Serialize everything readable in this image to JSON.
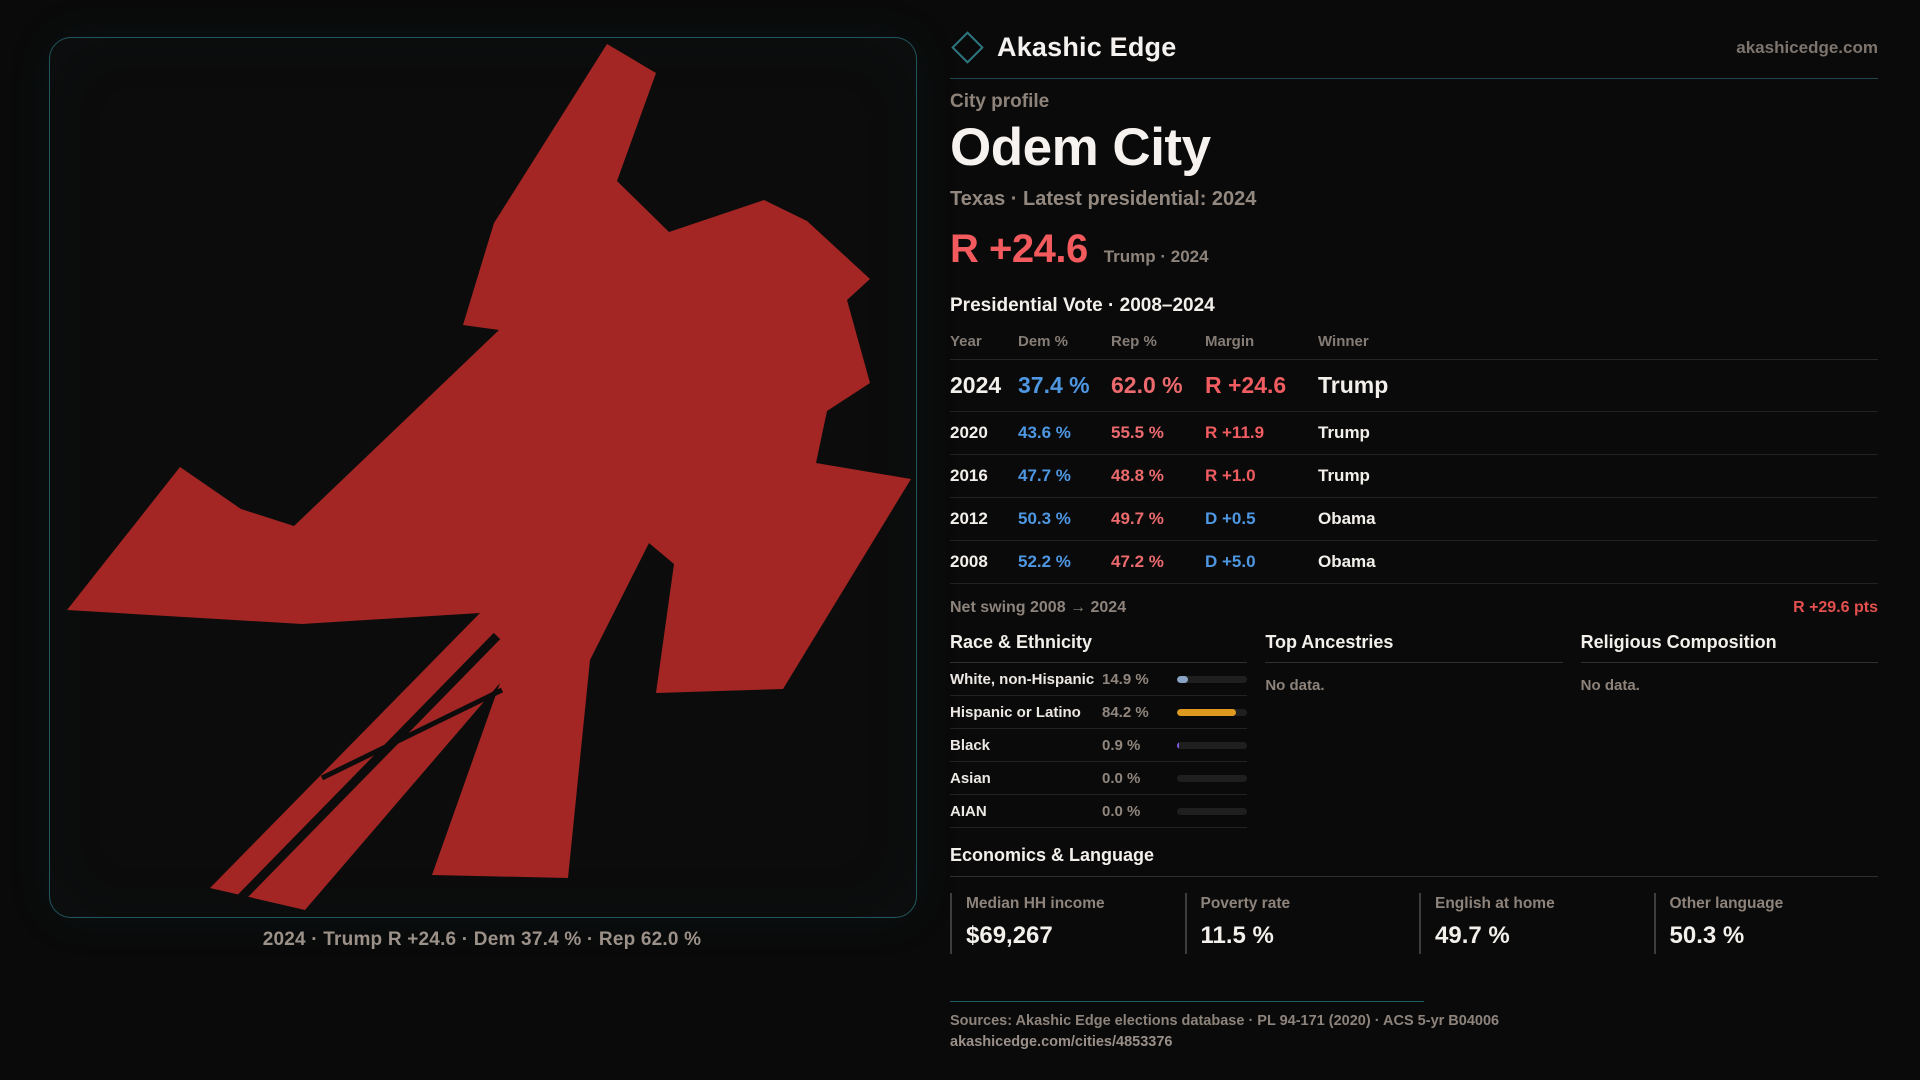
{
  "brand": {
    "name": "Akashic Edge",
    "domain": "akashicedge.com"
  },
  "profile": {
    "kicker": "City profile",
    "city": "Odem City",
    "subtitle": "Texas · Latest presidential: 2024",
    "headline_margin": "R +24.6",
    "headline_context": "Trump · 2024"
  },
  "vote_table": {
    "title": "Presidential Vote · 2008–2024",
    "columns": [
      "Year",
      "Dem %",
      "Rep %",
      "Margin",
      "Winner"
    ],
    "rows": [
      {
        "year": "2024",
        "dem": "37.4 %",
        "rep": "62.0 %",
        "margin": "R +24.6",
        "margin_party": "R",
        "winner": "Trump"
      },
      {
        "year": "2020",
        "dem": "43.6 %",
        "rep": "55.5 %",
        "margin": "R +11.9",
        "margin_party": "R",
        "winner": "Trump"
      },
      {
        "year": "2016",
        "dem": "47.7 %",
        "rep": "48.8 %",
        "margin": "R +1.0",
        "margin_party": "R",
        "winner": "Trump"
      },
      {
        "year": "2012",
        "dem": "50.3 %",
        "rep": "49.7 %",
        "margin": "D +0.5",
        "margin_party": "D",
        "winner": "Obama"
      },
      {
        "year": "2008",
        "dem": "52.2 %",
        "rep": "47.2 %",
        "margin": "D +5.0",
        "margin_party": "D",
        "winner": "Obama"
      }
    ]
  },
  "net_swing": {
    "label": "Net swing 2008 → 2024",
    "value": "R +29.6 pts"
  },
  "race": {
    "title": "Race & Ethnicity",
    "rows": [
      {
        "label": "White, non-Hispanic",
        "value": "14.9 %",
        "pct": 14.9,
        "color": "#8ba3c4"
      },
      {
        "label": "Hispanic or Latino",
        "value": "84.2 %",
        "pct": 84.2,
        "color": "#dd9a1f"
      },
      {
        "label": "Black",
        "value": "0.9 %",
        "pct": 0.9,
        "color": "#7e57e2"
      },
      {
        "label": "Asian",
        "value": "0.0 %",
        "pct": 0.0,
        "color": "#8ba3c4"
      },
      {
        "label": "AIAN",
        "value": "0.0 %",
        "pct": 0.0,
        "color": "#8ba3c4"
      }
    ]
  },
  "ancestries": {
    "title": "Top Ancestries",
    "empty": "No data."
  },
  "religion": {
    "title": "Religious Composition",
    "empty": "No data."
  },
  "economics": {
    "title": "Economics & Language",
    "stats": [
      {
        "label": "Median HH income",
        "value": "$69,267"
      },
      {
        "label": "Poverty rate",
        "value": "11.5 %"
      },
      {
        "label": "English at home",
        "value": "49.7 %"
      },
      {
        "label": "Other language",
        "value": "50.3 %"
      }
    ]
  },
  "footer": {
    "sources": "Sources: Akashic Edge elections database · PL 94-171 (2020) · ACS 5-yr B04006",
    "permalink": "akashicedge.com/cities/4853376"
  },
  "map": {
    "caption": "2024 · Trump R +24.6 · Dem 37.4 % · Rep 62.0 %",
    "fill": "#a32624",
    "background": "#0c0c0c",
    "border_color": "#21565f"
  }
}
